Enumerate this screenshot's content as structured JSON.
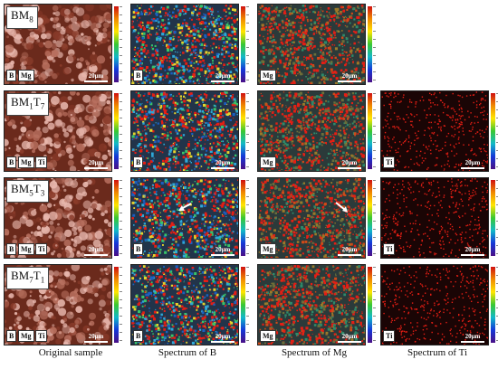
{
  "rows": [
    {
      "sample": "BM",
      "sample_sub": "8",
      "extra_sub": "",
      "panels": [
        {
          "kind": "original",
          "tags": [
            "B",
            "Mg"
          ],
          "scale": "20μm"
        },
        {
          "kind": "B",
          "tags": [
            "B"
          ],
          "scale": "20μm"
        },
        {
          "kind": "Mg",
          "tags": [
            "Mg"
          ],
          "scale": "20μm"
        }
      ]
    },
    {
      "sample": "BM",
      "sample_sub": "1",
      "extra": "T",
      "extra_sub": "7",
      "panels": [
        {
          "kind": "original",
          "tags": [
            "B",
            "Mg",
            "Ti"
          ],
          "scale": "20μm"
        },
        {
          "kind": "B",
          "tags": [
            "B"
          ],
          "scale": "20μm"
        },
        {
          "kind": "Mg",
          "tags": [
            "Mg"
          ],
          "scale": "20μm"
        },
        {
          "kind": "Ti",
          "tags": [
            "Ti"
          ],
          "scale": "20μm"
        }
      ]
    },
    {
      "sample": "BM",
      "sample_sub": "5",
      "extra": "T",
      "extra_sub": "3",
      "panels": [
        {
          "kind": "original",
          "tags": [
            "B",
            "Mg",
            "Ti"
          ],
          "scale": "20μm"
        },
        {
          "kind": "B",
          "tags": [
            "B"
          ],
          "scale": "20μm"
        },
        {
          "kind": "Mg",
          "tags": [
            "Mg"
          ],
          "scale": "20μm"
        },
        {
          "kind": "Ti",
          "tags": [
            "Ti"
          ],
          "scale": "20μm"
        }
      ]
    },
    {
      "sample": "BM",
      "sample_sub": "7",
      "extra": "T",
      "extra_sub": "1",
      "panels": [
        {
          "kind": "original",
          "tags": [
            "B",
            "Mg",
            "Ti"
          ],
          "scale": "20μm"
        },
        {
          "kind": "B",
          "tags": [
            "B"
          ],
          "scale": "20μm"
        },
        {
          "kind": "Mg",
          "tags": [
            "Mg"
          ],
          "scale": "20μm"
        },
        {
          "kind": "Ti",
          "tags": [
            "Ti"
          ],
          "scale": "20μm"
        }
      ]
    }
  ],
  "captions": [
    "Original sample",
    "Spectrum of B",
    "Spectrum of Mg",
    "Spectrum of Ti"
  ],
  "colors": {
    "original_base": "#6b2a1c",
    "original_highlight": "#e8b7ad",
    "b_base": "#22344a",
    "mg_base": "#2b3a3a",
    "ti_base": "#1a0505",
    "element_dot": "#e51e14"
  }
}
